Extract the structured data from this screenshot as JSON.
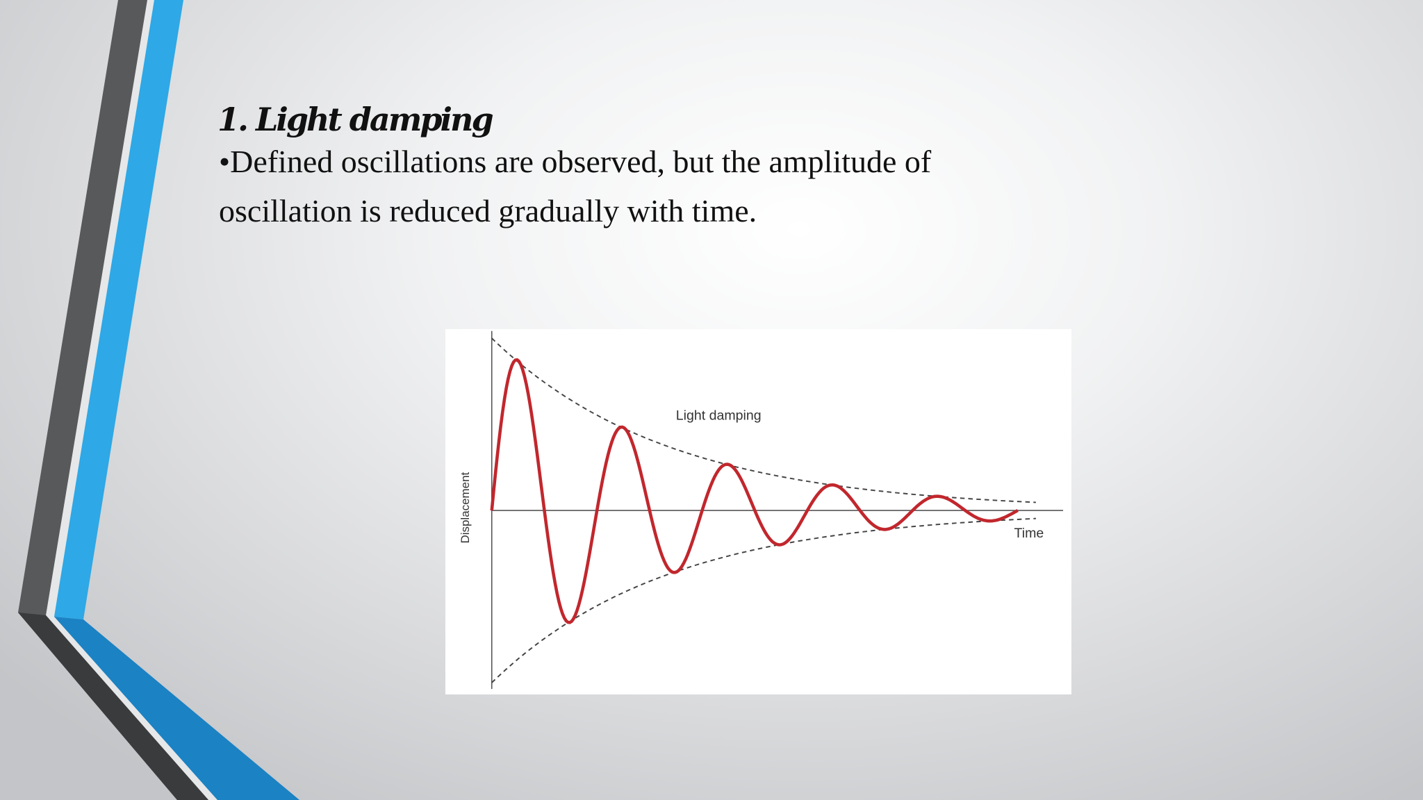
{
  "slide": {
    "title": "1. Light damping",
    "body": {
      "lines": [
        "•Defined oscillations are observed, but the amplitude of",
        "oscillation is reduced gradually with time."
      ]
    },
    "figure": {
      "title": "Light damping",
      "y_axis_label": "Displacement",
      "x_axis_label": "Time"
    }
  }
}
